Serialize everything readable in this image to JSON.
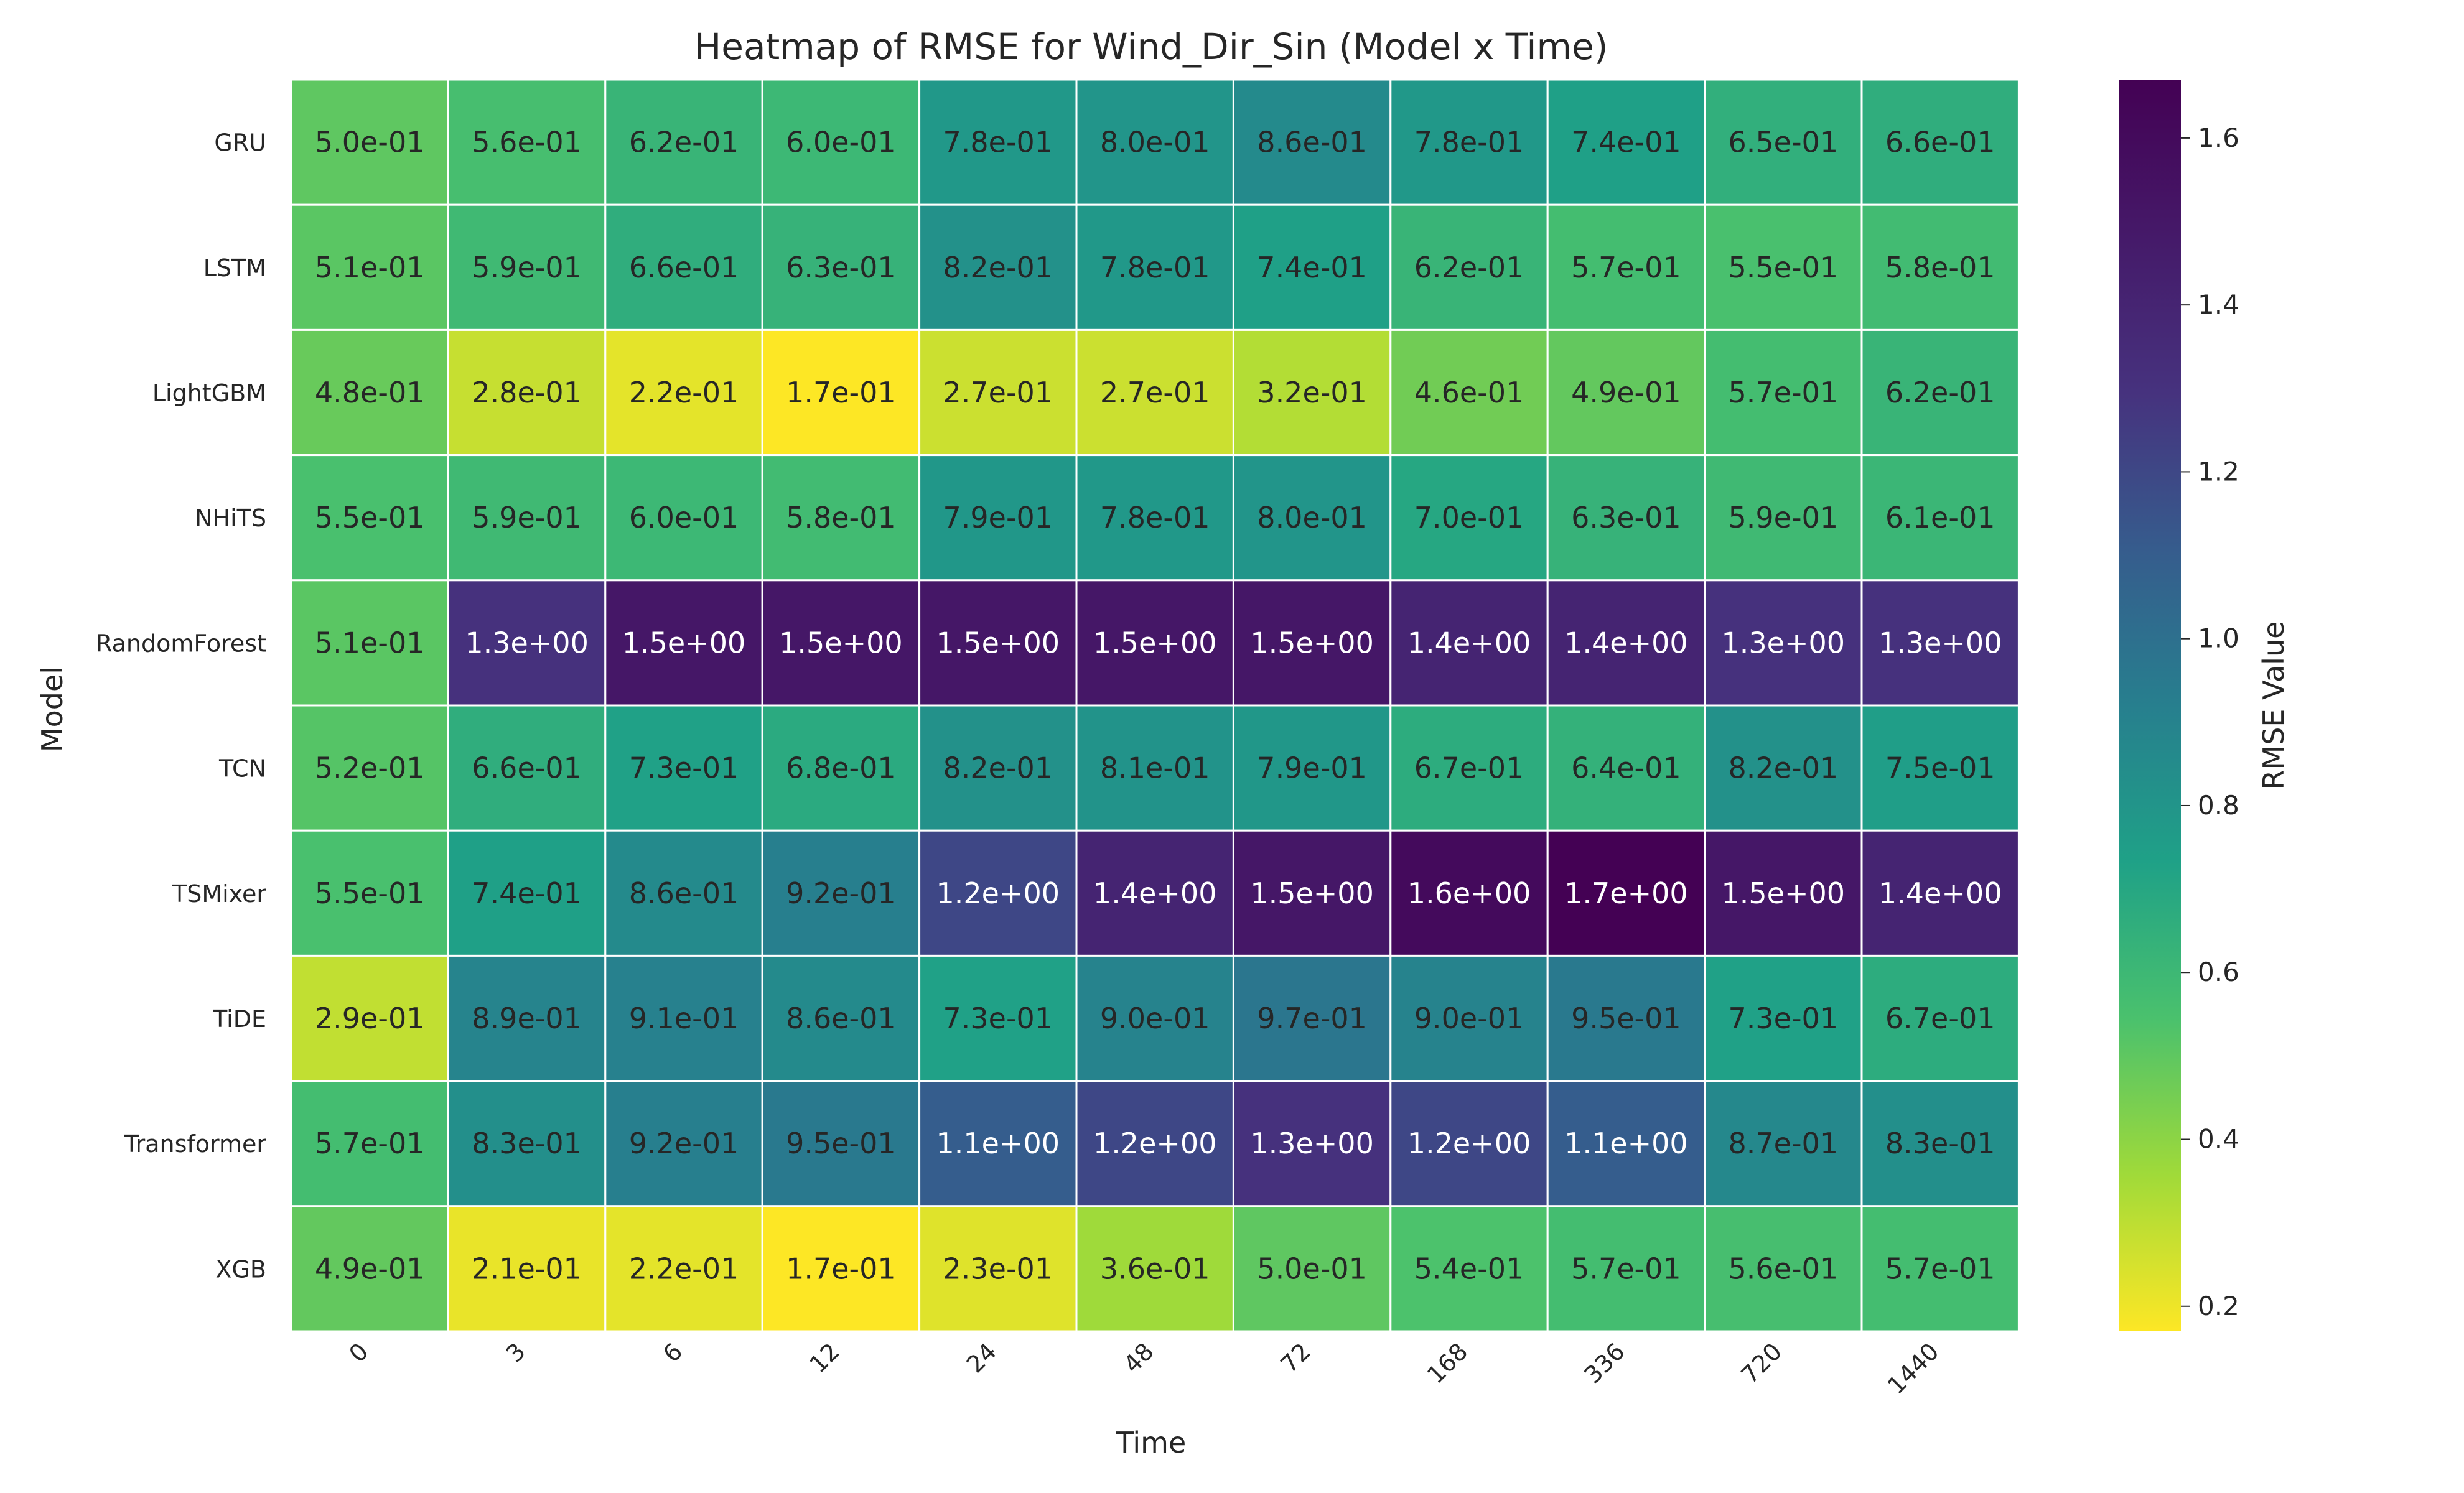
{
  "chart_data": {
    "type": "heatmap",
    "title": "Heatmap of RMSE for Wind_Dir_Sin (Model x Time)",
    "xlabel": "Time",
    "ylabel": "Model",
    "colorbar_label": "RMSE Value",
    "colormap": "viridis_r",
    "value_range": [
      0.17,
      1.67
    ],
    "colorbar_ticks": [
      "0.2",
      "0.4",
      "0.6",
      "0.8",
      "1.0",
      "1.2",
      "1.4",
      "1.6"
    ],
    "x_categories": [
      "0",
      "3",
      "6",
      "12",
      "24",
      "48",
      "72",
      "168",
      "336",
      "720",
      "1440"
    ],
    "y_categories": [
      "GRU",
      "LSTM",
      "LightGBM",
      "NHiTS",
      "RandomForest",
      "TCN",
      "TSMixer",
      "TiDE",
      "Transformer",
      "XGB"
    ],
    "values": [
      [
        0.5,
        0.56,
        0.62,
        0.6,
        0.78,
        0.8,
        0.86,
        0.78,
        0.74,
        0.65,
        0.66
      ],
      [
        0.51,
        0.59,
        0.66,
        0.63,
        0.82,
        0.78,
        0.74,
        0.62,
        0.57,
        0.55,
        0.58
      ],
      [
        0.48,
        0.28,
        0.22,
        0.17,
        0.27,
        0.27,
        0.32,
        0.46,
        0.49,
        0.57,
        0.62
      ],
      [
        0.55,
        0.59,
        0.6,
        0.58,
        0.79,
        0.78,
        0.8,
        0.7,
        0.63,
        0.59,
        0.61
      ],
      [
        0.51,
        1.3,
        1.5,
        1.5,
        1.5,
        1.5,
        1.5,
        1.4,
        1.4,
        1.3,
        1.3
      ],
      [
        0.52,
        0.66,
        0.73,
        0.68,
        0.82,
        0.81,
        0.79,
        0.67,
        0.64,
        0.82,
        0.75
      ],
      [
        0.55,
        0.74,
        0.86,
        0.92,
        1.2,
        1.4,
        1.5,
        1.6,
        1.7,
        1.5,
        1.4
      ],
      [
        0.29,
        0.89,
        0.91,
        0.86,
        0.73,
        0.9,
        0.97,
        0.9,
        0.95,
        0.73,
        0.67
      ],
      [
        0.57,
        0.83,
        0.92,
        0.95,
        1.1,
        1.2,
        1.3,
        1.2,
        1.1,
        0.87,
        0.83
      ],
      [
        0.49,
        0.21,
        0.22,
        0.17,
        0.23,
        0.36,
        0.5,
        0.54,
        0.57,
        0.56,
        0.57
      ]
    ],
    "labels": [
      [
        "5.0e-01",
        "5.6e-01",
        "6.2e-01",
        "6.0e-01",
        "7.8e-01",
        "8.0e-01",
        "8.6e-01",
        "7.8e-01",
        "7.4e-01",
        "6.5e-01",
        "6.6e-01"
      ],
      [
        "5.1e-01",
        "5.9e-01",
        "6.6e-01",
        "6.3e-01",
        "8.2e-01",
        "7.8e-01",
        "7.4e-01",
        "6.2e-01",
        "5.7e-01",
        "5.5e-01",
        "5.8e-01"
      ],
      [
        "4.8e-01",
        "2.8e-01",
        "2.2e-01",
        "1.7e-01",
        "2.7e-01",
        "2.7e-01",
        "3.2e-01",
        "4.6e-01",
        "4.9e-01",
        "5.7e-01",
        "6.2e-01"
      ],
      [
        "5.5e-01",
        "5.9e-01",
        "6.0e-01",
        "5.8e-01",
        "7.9e-01",
        "7.8e-01",
        "8.0e-01",
        "7.0e-01",
        "6.3e-01",
        "5.9e-01",
        "6.1e-01"
      ],
      [
        "5.1e-01",
        "1.3e+00",
        "1.5e+00",
        "1.5e+00",
        "1.5e+00",
        "1.5e+00",
        "1.5e+00",
        "1.4e+00",
        "1.4e+00",
        "1.3e+00",
        "1.3e+00"
      ],
      [
        "5.2e-01",
        "6.6e-01",
        "7.3e-01",
        "6.8e-01",
        "8.2e-01",
        "8.1e-01",
        "7.9e-01",
        "6.7e-01",
        "6.4e-01",
        "8.2e-01",
        "7.5e-01"
      ],
      [
        "5.5e-01",
        "7.4e-01",
        "8.6e-01",
        "9.2e-01",
        "1.2e+00",
        "1.4e+00",
        "1.5e+00",
        "1.6e+00",
        "1.7e+00",
        "1.5e+00",
        "1.4e+00"
      ],
      [
        "2.9e-01",
        "8.9e-01",
        "9.1e-01",
        "8.6e-01",
        "7.3e-01",
        "9.0e-01",
        "9.7e-01",
        "9.0e-01",
        "9.5e-01",
        "7.3e-01",
        "6.7e-01"
      ],
      [
        "5.7e-01",
        "8.3e-01",
        "9.2e-01",
        "9.5e-01",
        "1.1e+00",
        "1.2e+00",
        "1.3e+00",
        "1.2e+00",
        "1.1e+00",
        "8.7e-01",
        "8.3e-01"
      ],
      [
        "4.9e-01",
        "2.1e-01",
        "2.2e-01",
        "1.7e-01",
        "2.3e-01",
        "3.6e-01",
        "5.0e-01",
        "5.4e-01",
        "5.7e-01",
        "5.6e-01",
        "5.7e-01"
      ]
    ]
  }
}
